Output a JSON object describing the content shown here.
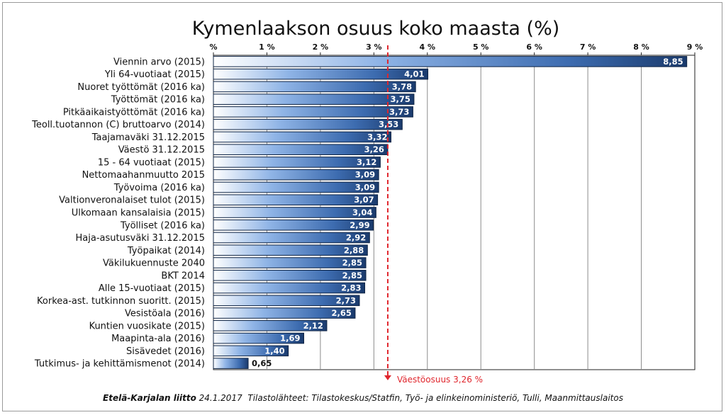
{
  "chart_data": {
    "type": "bar",
    "orientation": "horizontal",
    "title": "Kymenlaakson osuus koko maasta (%)",
    "x_ticks": [
      "%",
      "1 %",
      "2 %",
      "3 %",
      "4 %",
      "5 %",
      "6 %",
      "7 %",
      "8 %",
      "9 %"
    ],
    "xlim": [
      0,
      9
    ],
    "grid": true,
    "categories": [
      "Viennin arvo (2015)",
      "Yli 64-vuotiaat (2015)",
      "Nuoret työttömät (2016 ka)",
      "Työttömät (2016 ka)",
      "Pitkäaikaistyöttömät (2016 ka)",
      "Teoll.tuotannon (C) bruttoarvo (2014)",
      "Taajamaväki 31.12.2015",
      "Väestö 31.12.2015",
      "15 - 64 vuotiaat (2015)",
      "Nettomaahanmuutto 2015",
      "Työvoima (2016 ka)",
      "Valtionveronalaiset tulot (2015)",
      "Ulkomaan kansalaisia (2015)",
      "Työlliset (2016 ka)",
      "Haja-asutusväki 31.12.2015",
      "Työpaikat (2014)",
      "Väkilukuennuste 2040",
      "BKT 2014",
      "Alle 15-vuotiaat (2015)",
      "Korkea-ast. tutkinnon suoritt. (2015)",
      "Vesistöala (2016)",
      "Kuntien vuosikate (2015)",
      "Maapinta-ala (2016)",
      "Sisävedet (2016)",
      "Tutkimus- ja kehittämismenot (2014)"
    ],
    "values": [
      8.85,
      4.01,
      3.78,
      3.75,
      3.73,
      3.53,
      3.32,
      3.26,
      3.12,
      3.09,
      3.09,
      3.07,
      3.04,
      2.99,
      2.92,
      2.88,
      2.85,
      2.85,
      2.83,
      2.73,
      2.65,
      2.12,
      1.69,
      1.4,
      0.65
    ],
    "value_labels": [
      "8,85",
      "4,01",
      "3,78",
      "3,75",
      "3,73",
      "3,53",
      "3,32",
      "3,26",
      "3,12",
      "3,09",
      "3,09",
      "3,07",
      "3,04",
      "2,99",
      "2,92",
      "2,88",
      "2,85",
      "2,85",
      "2,83",
      "2,73",
      "2,65",
      "2,12",
      "1,69",
      "1,40",
      "0,65"
    ],
    "reference_line": {
      "value": 3.26,
      "label": "Väestöosuus 3,26 %",
      "color": "#e0262d"
    },
    "colors": {
      "bar_dark": "#1a3a6c",
      "bar_light": "#ffffff",
      "grid": "#8c8c8c",
      "axis": "#222222"
    }
  },
  "footer": {
    "source_org": "Etelä-Karjalan liitto",
    "date": "24.1.2017",
    "sources": "Tilastolähteet: Tilastokeskus/Statfin, Työ- ja elinkeinoministeriö, Tulli, Maanmittauslaitos"
  }
}
